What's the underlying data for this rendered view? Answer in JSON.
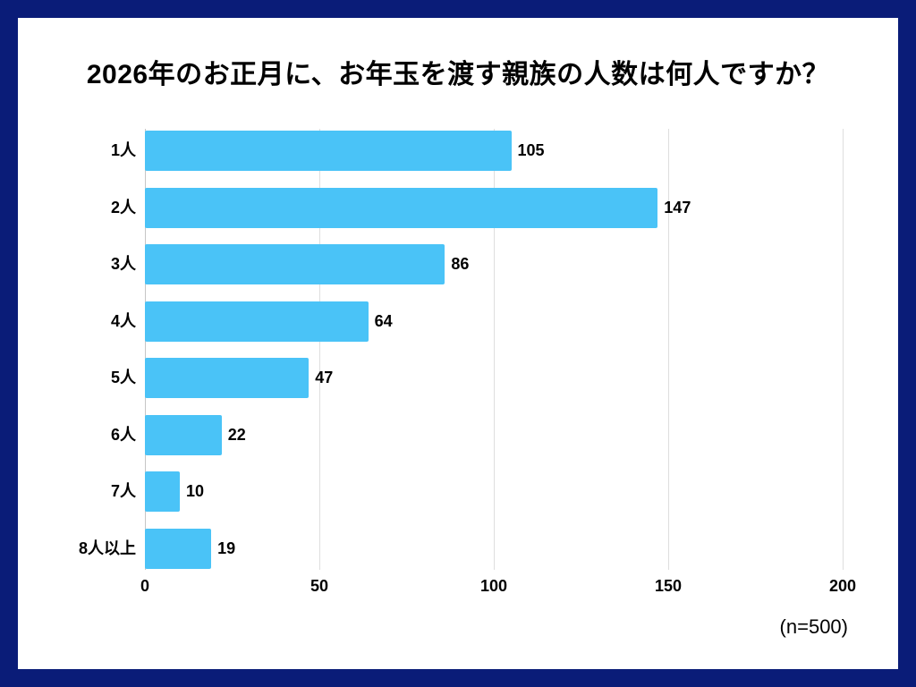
{
  "frame": {
    "border_color": "#0A1C78",
    "card_background": "#FFFFFF"
  },
  "title": "2026年のお正月に、お年玉を渡す親族の人数は何人ですか？",
  "sample_note": "(n=500)",
  "chart_data": {
    "type": "bar",
    "orientation": "horizontal",
    "title": "2026年のお正月に、お年玉を渡す親族の人数は何人ですか？",
    "categories": [
      "1人",
      "2人",
      "3人",
      "4人",
      "5人",
      "6人",
      "7人",
      "8人以上"
    ],
    "values": [
      105,
      147,
      86,
      64,
      47,
      22,
      10,
      19
    ],
    "xlim": [
      0,
      200
    ],
    "xticks": [
      0,
      50,
      100,
      150,
      200
    ],
    "bar_color": "#4AC3F7",
    "gridline_color": "#DEDEDE",
    "axis_line_color": "#C6C6C6",
    "grid": "on",
    "value_labels": "on",
    "legend": "none"
  }
}
